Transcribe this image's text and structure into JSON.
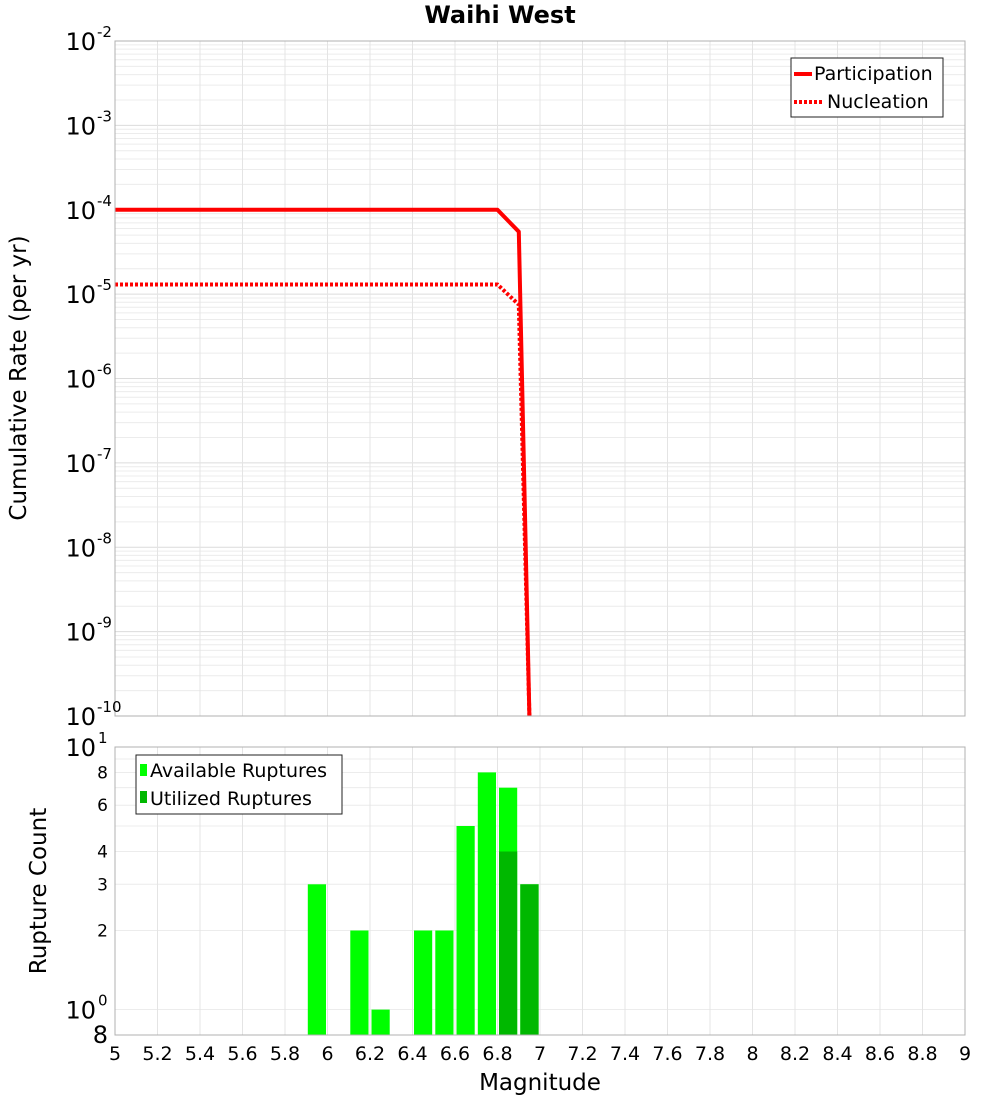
{
  "title": "Waihi West",
  "chart_data": [
    {
      "type": "line",
      "title": "Waihi West",
      "xlabel": "Magnitude",
      "ylabel": "Cumulative Rate (per yr)",
      "yscale": "log",
      "xlim": [
        5,
        9
      ],
      "ylim": [
        1e-10,
        0.01
      ],
      "y_ticks": [
        {
          "base": "10",
          "exp": "-2"
        },
        {
          "base": "10",
          "exp": "-3"
        },
        {
          "base": "10",
          "exp": "-4"
        },
        {
          "base": "10",
          "exp": "-5"
        },
        {
          "base": "10",
          "exp": "-6"
        },
        {
          "base": "10",
          "exp": "-7"
        },
        {
          "base": "10",
          "exp": "-8"
        },
        {
          "base": "10",
          "exp": "-9"
        },
        {
          "base": "10",
          "exp": "-10"
        }
      ],
      "legend": "top-right",
      "series": [
        {
          "name": "Participation",
          "color": "#ff0000",
          "style": "solid",
          "x": [
            5.0,
            6.8,
            6.9,
            6.95
          ],
          "y": [
            0.0001,
            0.0001,
            5.5e-05,
            1e-10
          ]
        },
        {
          "name": "Nucleation",
          "color": "#ff0000",
          "style": "dotted",
          "x": [
            5.0,
            6.8,
            6.9,
            6.95
          ],
          "y": [
            1.3e-05,
            1.3e-05,
            7.5e-06,
            1e-10
          ]
        }
      ]
    },
    {
      "type": "bar",
      "xlabel": "Magnitude",
      "ylabel": "Rupture Count",
      "yscale": "log",
      "xlim": [
        5,
        9
      ],
      "ylim": [
        0.8,
        10
      ],
      "x_ticks": [
        "5",
        "5.2",
        "5.4",
        "5.6",
        "5.8",
        "6",
        "6.2",
        "6.4",
        "6.6",
        "6.8",
        "7",
        "7.2",
        "7.4",
        "7.6",
        "7.8",
        "8",
        "8.2",
        "8.4",
        "8.6",
        "8.8",
        "9"
      ],
      "y_ticks_minor": [
        "2",
        "3",
        "4",
        "6",
        "8"
      ],
      "y_tick_decade_top": {
        "base": "10",
        "exp": "1"
      },
      "y_tick_decade_bottom": {
        "base": "10",
        "exp": "0"
      },
      "y_tick_bottom_extra": "8",
      "legend": "top-left",
      "bin_width": 0.1,
      "series": [
        {
          "name": "Available Ruptures",
          "color": "#00ff00",
          "x": [
            5.95,
            6.15,
            6.25,
            6.45,
            6.55,
            6.65,
            6.75,
            6.85,
            6.95
          ],
          "values": [
            3,
            2,
            1,
            2,
            2,
            5,
            8,
            7,
            3
          ]
        },
        {
          "name": "Utilized Ruptures",
          "color": "#00b800",
          "x": [
            6.85,
            6.95
          ],
          "values": [
            4,
            3
          ]
        }
      ]
    }
  ]
}
